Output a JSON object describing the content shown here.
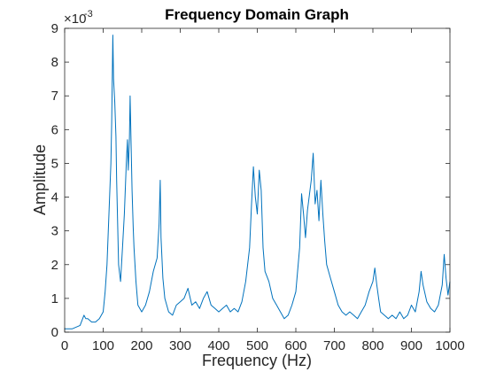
{
  "chart_data": {
    "type": "line",
    "title": "Frequency Domain Graph",
    "xlabel": "Frequency (Hz)",
    "ylabel": "Amplitude",
    "xlim": [
      0,
      1000
    ],
    "ylim": [
      0,
      0.009
    ],
    "y_exponent_label": "×10",
    "y_exponent_value": "-3",
    "x_ticks": [
      0,
      100,
      200,
      300,
      400,
      500,
      600,
      700,
      800,
      900,
      1000
    ],
    "x_tick_labels": [
      "0",
      "100",
      "200",
      "300",
      "400",
      "500",
      "600",
      "700",
      "800",
      "900",
      "1000"
    ],
    "y_ticks": [
      0,
      0.001,
      0.002,
      0.003,
      0.004,
      0.005,
      0.006,
      0.007,
      0.008,
      0.009
    ],
    "y_tick_labels": [
      "0",
      "1",
      "2",
      "3",
      "4",
      "5",
      "6",
      "7",
      "8",
      "9"
    ],
    "grid": false,
    "line_color": "#0072BD",
    "series": [
      {
        "x": [
          0,
          20,
          40,
          50,
          55,
          60,
          70,
          80,
          90,
          100,
          105,
          110,
          115,
          120,
          122,
          125,
          127,
          130,
          133,
          135,
          140,
          145,
          150,
          155,
          160,
          163,
          165,
          168,
          170,
          173,
          175,
          178,
          180,
          185,
          190,
          200,
          210,
          220,
          230,
          240,
          245,
          248,
          250,
          255,
          260,
          270,
          280,
          290,
          300,
          310,
          320,
          330,
          340,
          350,
          360,
          370,
          380,
          390,
          400,
          410,
          420,
          430,
          440,
          450,
          460,
          470,
          480,
          485,
          490,
          495,
          500,
          505,
          510,
          515,
          520,
          530,
          540,
          550,
          560,
          570,
          580,
          590,
          600,
          610,
          615,
          620,
          625,
          630,
          640,
          645,
          650,
          655,
          660,
          665,
          670,
          675,
          680,
          690,
          700,
          710,
          720,
          730,
          740,
          750,
          760,
          770,
          780,
          790,
          800,
          805,
          810,
          815,
          820,
          830,
          840,
          850,
          860,
          870,
          880,
          890,
          900,
          910,
          920,
          925,
          930,
          940,
          950,
          960,
          970,
          980,
          985,
          990,
          995,
          1000
        ],
        "y": [
          0.0001,
          0.0001,
          0.0002,
          0.0005,
          0.0004,
          0.0004,
          0.0003,
          0.0003,
          0.0004,
          0.0006,
          0.0012,
          0.002,
          0.0035,
          0.005,
          0.0062,
          0.0088,
          0.0075,
          0.0068,
          0.0058,
          0.0045,
          0.002,
          0.0015,
          0.0025,
          0.0035,
          0.005,
          0.0057,
          0.0048,
          0.0057,
          0.007,
          0.0052,
          0.0042,
          0.0031,
          0.0025,
          0.0015,
          0.0008,
          0.0006,
          0.0008,
          0.0012,
          0.0018,
          0.0022,
          0.0032,
          0.0045,
          0.0028,
          0.0016,
          0.001,
          0.0006,
          0.0005,
          0.0008,
          0.0009,
          0.001,
          0.0013,
          0.0008,
          0.0009,
          0.0007,
          0.001,
          0.0012,
          0.0008,
          0.0007,
          0.0006,
          0.0007,
          0.0008,
          0.0006,
          0.0007,
          0.0006,
          0.0009,
          0.0015,
          0.0025,
          0.0038,
          0.0049,
          0.004,
          0.0035,
          0.0048,
          0.0042,
          0.0025,
          0.0018,
          0.0015,
          0.001,
          0.0008,
          0.0006,
          0.0004,
          0.0005,
          0.0008,
          0.0012,
          0.0025,
          0.0041,
          0.0035,
          0.0028,
          0.0036,
          0.0045,
          0.0053,
          0.0038,
          0.0042,
          0.0033,
          0.0045,
          0.0035,
          0.0027,
          0.002,
          0.0016,
          0.0012,
          0.0008,
          0.0006,
          0.0005,
          0.0006,
          0.0005,
          0.0004,
          0.0006,
          0.0008,
          0.0012,
          0.0015,
          0.0019,
          0.0014,
          0.001,
          0.0006,
          0.0005,
          0.0004,
          0.0005,
          0.0004,
          0.0006,
          0.0004,
          0.0005,
          0.0008,
          0.0006,
          0.0012,
          0.0018,
          0.0014,
          0.0009,
          0.0007,
          0.0006,
          0.0008,
          0.0014,
          0.0023,
          0.0016,
          0.0011,
          0.0015
        ]
      }
    ]
  }
}
